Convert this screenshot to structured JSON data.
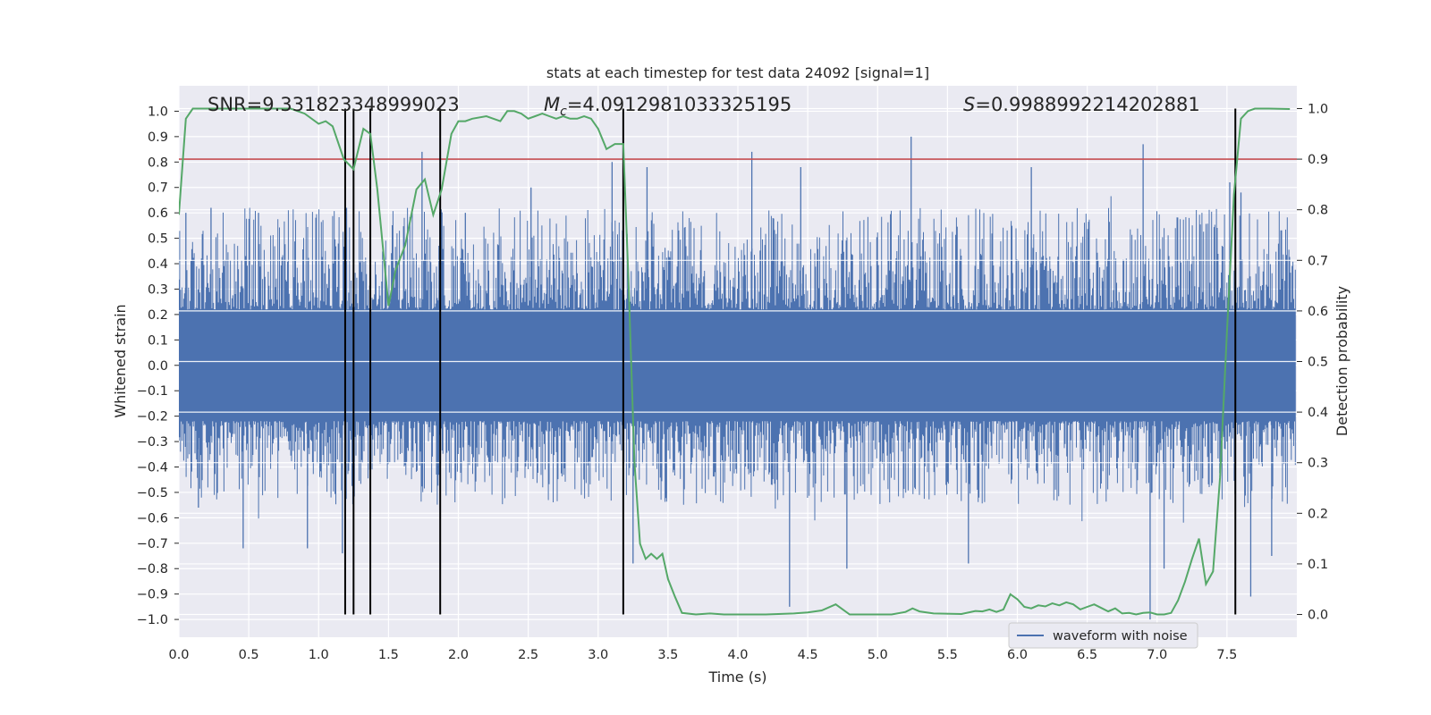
{
  "chart_data": {
    "type": "line",
    "title": "stats at each timestep for test data 24092 [signal=1]",
    "xlabel": "Time (s)",
    "ylabel": "Whitened strain",
    "y2label": "Detection probability",
    "xlim": [
      0.0,
      8.0
    ],
    "ylim": [
      -1.07,
      1.1
    ],
    "y2lim": [
      -0.045,
      1.045
    ],
    "grid": true,
    "xticks": [
      0.0,
      0.5,
      1.0,
      1.5,
      2.0,
      2.5,
      3.0,
      3.5,
      4.0,
      4.5,
      5.0,
      5.5,
      6.0,
      6.5,
      7.0,
      7.5
    ],
    "xtick_labels": [
      "0.0",
      "0.5",
      "1.0",
      "1.5",
      "2.0",
      "2.5",
      "3.0",
      "3.5",
      "4.0",
      "4.5",
      "5.0",
      "5.5",
      "6.0",
      "6.5",
      "7.0",
      "7.5"
    ],
    "yticks": [
      -1.0,
      -0.9,
      -0.8,
      -0.7,
      -0.6,
      -0.5,
      -0.4,
      -0.3,
      -0.2,
      -0.1,
      0.0,
      0.1,
      0.2,
      0.3,
      0.4,
      0.5,
      0.6,
      0.7,
      0.8,
      0.9,
      1.0
    ],
    "ytick_labels": [
      "−1.0",
      "−0.9",
      "−0.8",
      "−0.7",
      "−0.6",
      "−0.5",
      "−0.4",
      "−0.3",
      "−0.2",
      "−0.1",
      "0.0",
      "0.1",
      "0.2",
      "0.3",
      "0.4",
      "0.5",
      "0.6",
      "0.7",
      "0.8",
      "0.9",
      "1.0"
    ],
    "y2ticks": [
      0.0,
      0.1,
      0.2,
      0.3,
      0.4,
      0.5,
      0.6,
      0.7,
      0.8,
      0.9,
      1.0
    ],
    "y2tick_labels": [
      "0.0",
      "0.1",
      "0.2",
      "0.3",
      "0.4",
      "0.5",
      "0.6",
      "0.7",
      "0.8",
      "0.9",
      "1.0"
    ],
    "annotations": {
      "snr": "SNR=9.331823348999023",
      "mc_symbol": "M",
      "mc_sub": "c",
      "mc_value": "=4.0912981033325195",
      "s_symbol": "S",
      "s_value": "=0.9988992214202881"
    },
    "threshold": {
      "value": 0.9,
      "axis": "y2",
      "color": "#c44e52"
    },
    "event_lines_x": [
      1.19,
      1.25,
      1.37,
      1.87,
      3.18,
      7.56
    ],
    "series": [
      {
        "name": "waveform with noise",
        "axis": "y",
        "color": "#4c72b0",
        "style": "dense-noise",
        "time_range": [
          0.0,
          7.99
        ],
        "envelope_upper": 0.55,
        "envelope_lower": -0.45,
        "spikes": [
          {
            "x": 0.05,
            "y": 0.6
          },
          {
            "x": 0.14,
            "y": -0.56
          },
          {
            "x": 0.23,
            "y": 0.62
          },
          {
            "x": 0.46,
            "y": -0.72
          },
          {
            "x": 0.57,
            "y": 0.6
          },
          {
            "x": 0.92,
            "y": -0.72
          },
          {
            "x": 1.17,
            "y": -0.74
          },
          {
            "x": 1.2,
            "y": 0.62
          },
          {
            "x": 1.74,
            "y": 0.84
          },
          {
            "x": 2.05,
            "y": 0.6
          },
          {
            "x": 2.32,
            "y": -0.25
          },
          {
            "x": 2.52,
            "y": 0.7
          },
          {
            "x": 3.1,
            "y": 0.8
          },
          {
            "x": 3.25,
            "y": -0.78
          },
          {
            "x": 3.35,
            "y": 0.78
          },
          {
            "x": 4.1,
            "y": 0.84
          },
          {
            "x": 4.37,
            "y": -0.95
          },
          {
            "x": 4.45,
            "y": 0.78
          },
          {
            "x": 4.78,
            "y": -0.8
          },
          {
            "x": 5.24,
            "y": 0.9
          },
          {
            "x": 5.65,
            "y": -0.78
          },
          {
            "x": 6.1,
            "y": 0.78
          },
          {
            "x": 6.9,
            "y": 0.87
          },
          {
            "x": 6.95,
            "y": -1.0
          },
          {
            "x": 7.05,
            "y": -0.8
          },
          {
            "x": 7.52,
            "y": 0.72
          },
          {
            "x": 7.6,
            "y": 0.68
          },
          {
            "x": 7.67,
            "y": -0.91
          },
          {
            "x": 7.82,
            "y": -0.75
          }
        ]
      },
      {
        "name": "detection probability",
        "axis": "y2",
        "color": "#55a868",
        "x": [
          0.0,
          0.05,
          0.1,
          0.2,
          0.3,
          0.4,
          0.5,
          0.6,
          0.7,
          0.8,
          0.9,
          1.0,
          1.05,
          1.1,
          1.18,
          1.25,
          1.32,
          1.37,
          1.42,
          1.5,
          1.55,
          1.62,
          1.7,
          1.76,
          1.82,
          1.88,
          1.95,
          2.0,
          2.05,
          2.1,
          2.2,
          2.25,
          2.3,
          2.35,
          2.4,
          2.45,
          2.5,
          2.55,
          2.6,
          2.65,
          2.7,
          2.75,
          2.8,
          2.85,
          2.9,
          2.95,
          3.0,
          3.06,
          3.12,
          3.18,
          3.22,
          3.26,
          3.3,
          3.34,
          3.38,
          3.42,
          3.46,
          3.5,
          3.55,
          3.6,
          3.7,
          3.8,
          3.9,
          4.0,
          4.2,
          4.4,
          4.5,
          4.6,
          4.7,
          4.8,
          5.0,
          5.1,
          5.2,
          5.25,
          5.3,
          5.4,
          5.6,
          5.7,
          5.75,
          5.8,
          5.85,
          5.9,
          5.95,
          6.0,
          6.05,
          6.1,
          6.15,
          6.2,
          6.25,
          6.3,
          6.35,
          6.4,
          6.45,
          6.5,
          6.55,
          6.6,
          6.65,
          6.7,
          6.75,
          6.8,
          6.85,
          6.9,
          6.95,
          7.0,
          7.05,
          7.1,
          7.15,
          7.2,
          7.25,
          7.3,
          7.35,
          7.4,
          7.45,
          7.5,
          7.55,
          7.6,
          7.65,
          7.7,
          7.8,
          7.95
        ],
        "values": [
          0.79,
          0.98,
          1.0,
          1.0,
          1.0,
          1.0,
          1.0,
          1.0,
          1.0,
          1.0,
          0.99,
          0.97,
          0.975,
          0.965,
          0.9,
          0.88,
          0.96,
          0.95,
          0.84,
          0.61,
          0.68,
          0.73,
          0.84,
          0.86,
          0.79,
          0.84,
          0.95,
          0.975,
          0.975,
          0.98,
          0.985,
          0.98,
          0.975,
          0.995,
          0.995,
          0.99,
          0.98,
          0.985,
          0.99,
          0.985,
          0.98,
          0.985,
          0.98,
          0.98,
          0.985,
          0.98,
          0.96,
          0.92,
          0.93,
          0.93,
          0.64,
          0.3,
          0.14,
          0.11,
          0.12,
          0.11,
          0.12,
          0.07,
          0.035,
          0.003,
          0.0,
          0.002,
          0.0,
          0.0,
          0.0,
          0.002,
          0.004,
          0.008,
          0.02,
          0.0,
          0.0,
          0.0,
          0.005,
          0.012,
          0.006,
          0.002,
          0.001,
          0.007,
          0.006,
          0.01,
          0.005,
          0.01,
          0.04,
          0.03,
          0.015,
          0.012,
          0.018,
          0.016,
          0.022,
          0.018,
          0.024,
          0.02,
          0.01,
          0.015,
          0.02,
          0.013,
          0.006,
          0.012,
          0.002,
          0.003,
          0.0,
          0.003,
          0.004,
          0.0,
          0.0,
          0.003,
          0.028,
          0.065,
          0.11,
          0.15,
          0.06,
          0.085,
          0.27,
          0.56,
          0.83,
          0.98,
          0.995,
          1.0,
          1.0,
          0.999
        ]
      }
    ],
    "legend": {
      "label": "waveform with noise",
      "location": "lower-right"
    }
  }
}
